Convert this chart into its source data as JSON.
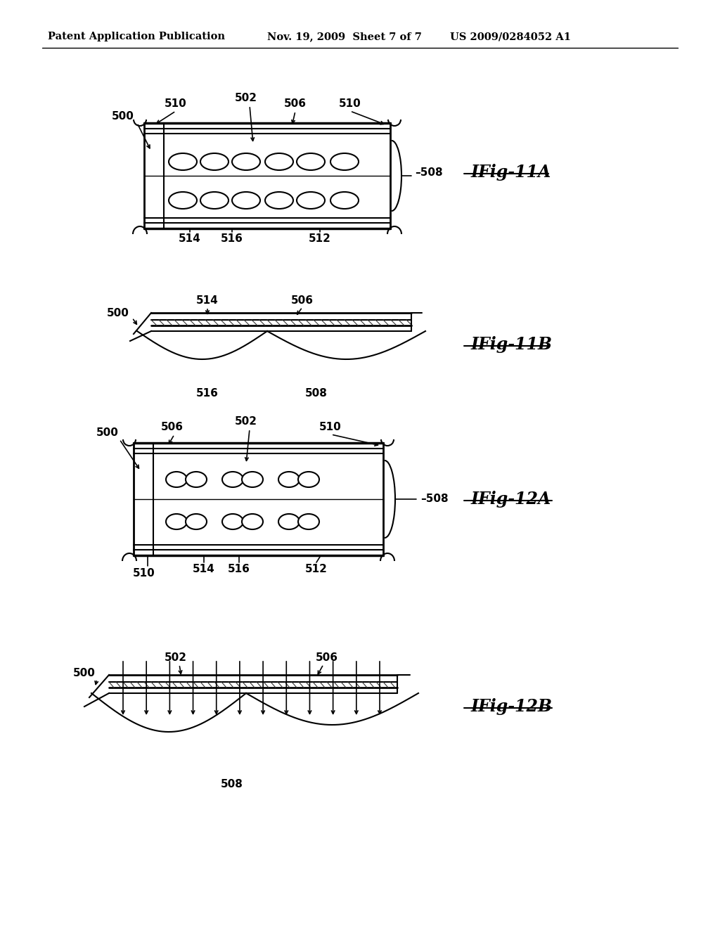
{
  "bg_color": "#ffffff",
  "header_text": "Patent Application Publication",
  "header_date": "Nov. 19, 2009  Sheet 7 of 7",
  "header_patent": "US 2009/0284052 A1",
  "fig11a_label": "IFig-11A",
  "fig11b_label": "IFig-11B",
  "fig12a_label": "IFig-12A",
  "fig12b_label": "IFig-12B"
}
